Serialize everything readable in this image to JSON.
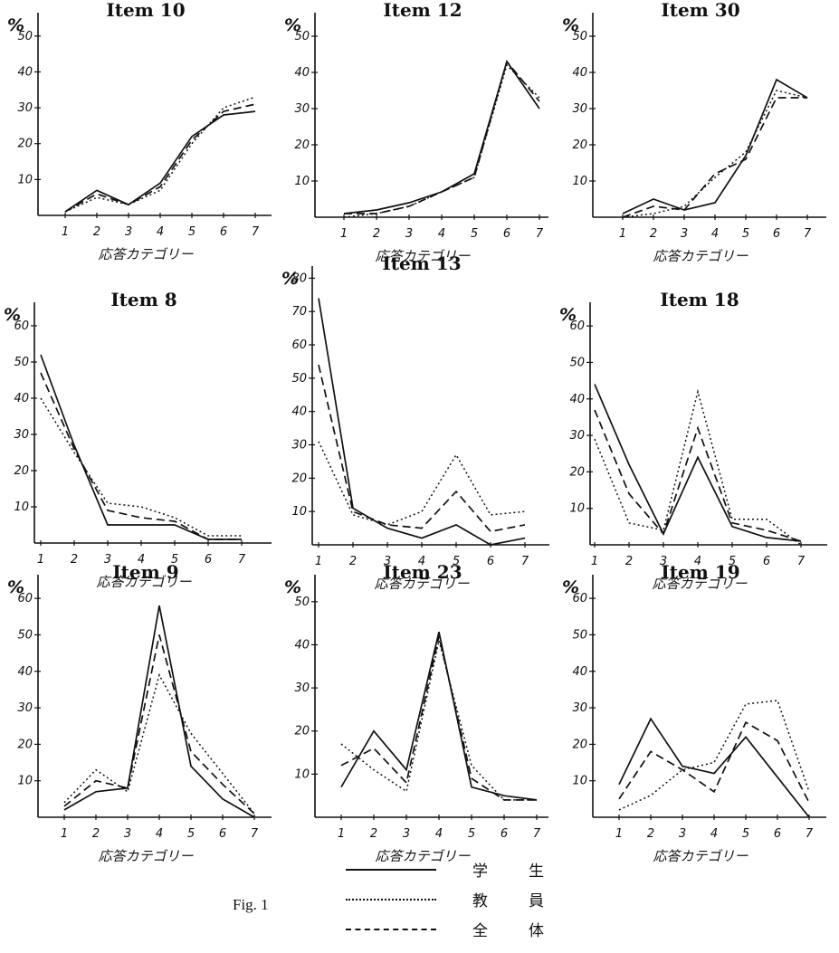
{
  "figure_label": "Fig. 1",
  "legend": [
    {
      "label": "学　生",
      "style": "solid"
    },
    {
      "label": "教　員",
      "style": "dotted"
    },
    {
      "label": "全　体",
      "style": "dashed"
    }
  ],
  "chart_data": [
    {
      "type": "line",
      "title": "Item 10",
      "ylabel": "%",
      "xlabel": "応答カテゴリー",
      "categories": [
        1,
        2,
        3,
        4,
        5,
        6,
        7
      ],
      "ylim": [
        0,
        55
      ],
      "yticks": [
        10,
        20,
        30,
        40,
        50
      ],
      "series": [
        {
          "name": "学生",
          "style": "solid",
          "values": [
            1,
            7,
            3,
            9,
            22,
            28,
            29
          ]
        },
        {
          "name": "教員",
          "style": "dotted",
          "values": [
            1,
            5,
            3,
            7,
            20,
            30,
            33
          ]
        },
        {
          "name": "全体",
          "style": "dashed",
          "values": [
            1,
            6,
            3,
            8,
            21,
            29,
            31
          ]
        }
      ]
    },
    {
      "type": "line",
      "title": "Item 12",
      "ylabel": "%",
      "xlabel": "応答カテゴリー",
      "categories": [
        1,
        2,
        3,
        4,
        5,
        6,
        7
      ],
      "ylim": [
        0,
        55
      ],
      "yticks": [
        10,
        20,
        30,
        40,
        50
      ],
      "series": [
        {
          "name": "学生",
          "style": "solid",
          "values": [
            1,
            2,
            4,
            7,
            12,
            43,
            30
          ]
        },
        {
          "name": "教員",
          "style": "dotted",
          "values": [
            0,
            1,
            3,
            7,
            11,
            42,
            33
          ]
        },
        {
          "name": "全体",
          "style": "dashed",
          "values": [
            1,
            1,
            3,
            7,
            11,
            43,
            32
          ]
        }
      ]
    },
    {
      "type": "line",
      "title": "Item 30",
      "ylabel": "%",
      "xlabel": "応答カテゴリー",
      "categories": [
        1,
        2,
        3,
        4,
        5,
        6,
        7
      ],
      "ylim": [
        0,
        55
      ],
      "yticks": [
        10,
        20,
        30,
        40,
        50
      ],
      "series": [
        {
          "name": "学生",
          "style": "solid",
          "values": [
            1,
            5,
            2,
            4,
            17,
            38,
            33
          ]
        },
        {
          "name": "教員",
          "style": "dotted",
          "values": [
            0,
            1,
            3,
            11,
            18,
            35,
            33
          ]
        },
        {
          "name": "全体",
          "style": "dashed",
          "values": [
            0,
            3,
            2,
            12,
            16,
            33,
            33
          ]
        }
      ]
    },
    {
      "type": "line",
      "title": "Item 8",
      "ylabel": "%",
      "xlabel": "応答カテゴリー",
      "categories": [
        1,
        2,
        3,
        4,
        5,
        6,
        7
      ],
      "ylim": [
        0,
        65
      ],
      "yticks": [
        10,
        20,
        30,
        40,
        50,
        60
      ],
      "series": [
        {
          "name": "学生",
          "style": "solid",
          "values": [
            52,
            27,
            5,
            5,
            5,
            1,
            1
          ]
        },
        {
          "name": "教員",
          "style": "dotted",
          "values": [
            40,
            25,
            11,
            10,
            7,
            2,
            2
          ]
        },
        {
          "name": "全体",
          "style": "dashed",
          "values": [
            47,
            26,
            9,
            7,
            6,
            1,
            1
          ]
        }
      ]
    },
    {
      "type": "line",
      "title": "Item 13",
      "ylabel": "%",
      "xlabel": "応答カテゴリー",
      "categories": [
        1,
        2,
        3,
        4,
        5,
        6,
        7
      ],
      "ylim": [
        0,
        82
      ],
      "yticks": [
        10,
        20,
        30,
        40,
        50,
        60,
        70,
        80
      ],
      "series": [
        {
          "name": "学生",
          "style": "solid",
          "values": [
            74,
            11,
            5,
            2,
            6,
            0,
            2
          ]
        },
        {
          "name": "教員",
          "style": "dotted",
          "values": [
            31,
            9,
            6,
            10,
            27,
            9,
            10
          ]
        },
        {
          "name": "全体",
          "style": "dashed",
          "values": [
            54,
            10,
            6,
            5,
            16,
            4,
            6
          ]
        }
      ]
    },
    {
      "type": "line",
      "title": "Item 18",
      "ylabel": "%",
      "xlabel": "応答カテゴリー",
      "categories": [
        1,
        2,
        3,
        4,
        5,
        6,
        7
      ],
      "ylim": [
        0,
        65
      ],
      "yticks": [
        10,
        20,
        30,
        40,
        50,
        60
      ],
      "series": [
        {
          "name": "学生",
          "style": "solid",
          "values": [
            44,
            22,
            3,
            24,
            5,
            2,
            1
          ]
        },
        {
          "name": "教員",
          "style": "dotted",
          "values": [
            29,
            6,
            4,
            42,
            7,
            7,
            0
          ]
        },
        {
          "name": "全体",
          "style": "dashed",
          "values": [
            37,
            14,
            3,
            32,
            6,
            4,
            1
          ]
        }
      ]
    },
    {
      "type": "line",
      "title": "Item 9",
      "ylabel": "%",
      "xlabel": "応答カテゴリー",
      "categories": [
        1,
        2,
        3,
        4,
        5,
        6,
        7
      ],
      "ylim": [
        0,
        65
      ],
      "yticks": [
        10,
        20,
        30,
        40,
        50,
        60
      ],
      "series": [
        {
          "name": "学生",
          "style": "solid",
          "values": [
            2,
            7,
            8,
            58,
            14,
            5,
            0
          ]
        },
        {
          "name": "教員",
          "style": "dotted",
          "values": [
            4,
            13,
            7,
            39,
            23,
            12,
            1
          ]
        },
        {
          "name": "全体",
          "style": "dashed",
          "values": [
            3,
            10,
            8,
            50,
            18,
            9,
            1
          ]
        }
      ]
    },
    {
      "type": "line",
      "title": "Item 23",
      "ylabel": "%",
      "xlabel": "応答カテゴリー",
      "categories": [
        1,
        2,
        3,
        4,
        5,
        6,
        7
      ],
      "ylim": [
        0,
        55
      ],
      "yticks": [
        10,
        20,
        30,
        40,
        50
      ],
      "series": [
        {
          "name": "学生",
          "style": "solid",
          "values": [
            7,
            20,
            11,
            43,
            7,
            5,
            4
          ]
        },
        {
          "name": "教員",
          "style": "dotted",
          "values": [
            17,
            11,
            6,
            41,
            12,
            4,
            4
          ]
        },
        {
          "name": "全体",
          "style": "dashed",
          "values": [
            12,
            16,
            8,
            42,
            9,
            4,
            4
          ]
        }
      ]
    },
    {
      "type": "line",
      "title": "Item 19",
      "ylabel": "%",
      "xlabel": "応答カテゴリー",
      "categories": [
        1,
        2,
        3,
        4,
        5,
        6,
        7
      ],
      "ylim": [
        0,
        65
      ],
      "yticks": [
        10,
        20,
        30,
        40,
        50,
        60
      ],
      "series": [
        {
          "name": "学生",
          "style": "solid",
          "values": [
            9,
            27,
            14,
            12,
            22,
            11,
            0
          ]
        },
        {
          "name": "教員",
          "style": "dotted",
          "values": [
            2,
            6,
            13,
            15,
            31,
            32,
            7
          ]
        },
        {
          "name": "全体",
          "style": "dashed",
          "values": [
            5,
            18,
            13,
            7,
            26,
            21,
            4
          ]
        }
      ]
    }
  ]
}
